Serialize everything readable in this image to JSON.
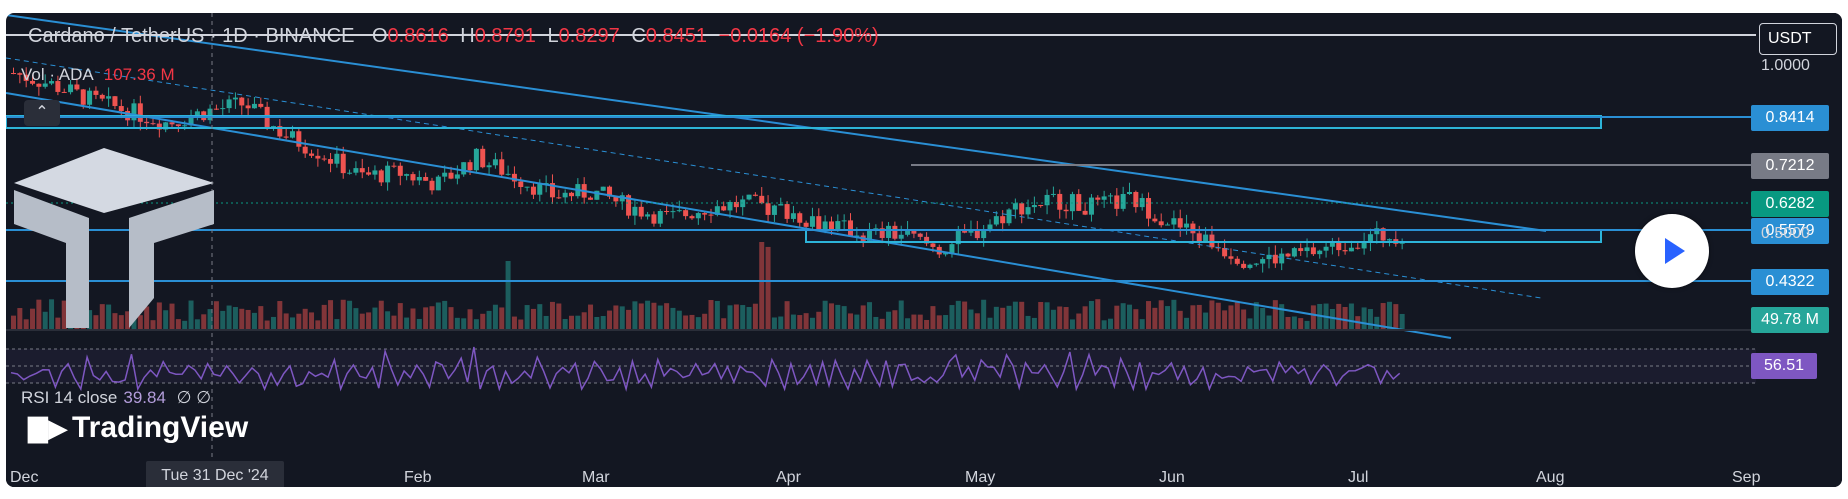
{
  "legend": {
    "title": "Cardano / TetherUS · 1D · BINANCE",
    "o_label": "O",
    "o_value": "0.8616",
    "h_label": "H",
    "h_value": "0.8791",
    "l_label": "L",
    "l_value": "0.8297",
    "c_label": "C",
    "c_value": "0.8451",
    "change": "−0.0164 (−1.90%)"
  },
  "volume": {
    "label": "Vol · ADA",
    "value": "107.36 M"
  },
  "rsi": {
    "label": "RSI 14 close",
    "value": "39.84",
    "extra": "∅ ∅"
  },
  "currency_button": "USDT",
  "collapse_icon": "chevron-up-icon",
  "play_icon": "play-icon",
  "watermark": "TradingView",
  "crosshair_date": "Tue 31 Dec '24",
  "colors": {
    "background": "#131722",
    "up": "#26a69a",
    "down": "#ef5350",
    "trendline": "#2a8fd4",
    "rsi": "#7e57c2",
    "grey_level": "#787b86",
    "current": "#089981"
  },
  "chart_data": {
    "type": "candlestick",
    "symbol": "ADAUSDT",
    "interval": "1D",
    "x_ticks": [
      "Dec",
      "Feb",
      "Mar",
      "Apr",
      "May",
      "Jun",
      "Jul",
      "Aug",
      "Sep"
    ],
    "y_ticks": [
      "1.0000",
      "0.5000"
    ],
    "price_labels": [
      {
        "value": "0.8414",
        "kind": "level"
      },
      {
        "value": "0.7212",
        "kind": "level"
      },
      {
        "value": "0.6282",
        "kind": "last-price"
      },
      {
        "value": "0.5579",
        "kind": "level"
      },
      {
        "value": "0.4322",
        "kind": "level"
      }
    ],
    "volume_label": "49.78 M",
    "rsi_label": "56.51",
    "series": [
      {
        "name": "close",
        "values": [
          1.05,
          1.02,
          0.98,
          0.95,
          0.92,
          0.95,
          0.97,
          0.89,
          0.84,
          0.78,
          0.79,
          0.76,
          0.83,
          0.78,
          0.73,
          0.74,
          0.7,
          0.67,
          0.7,
          0.71,
          0.69,
          0.66,
          0.63,
          0.63,
          0.59,
          0.64,
          0.7,
          0.72,
          0.7,
          0.72,
          0.66,
          0.61,
          0.56,
          0.57,
          0.59,
          0.62,
          0.63
        ]
      }
    ]
  }
}
